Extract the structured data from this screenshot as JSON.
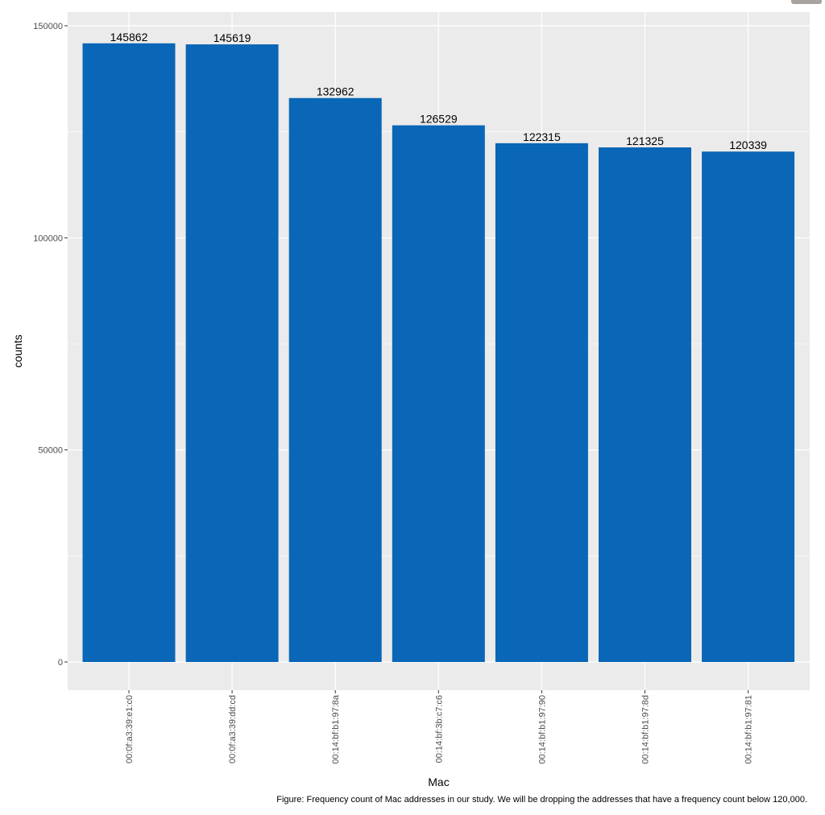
{
  "chart_data": {
    "type": "bar",
    "xlabel": "Mac",
    "ylabel": "counts",
    "categories": [
      "00:0f:a3:39:e1:c0",
      "00:0f:a3:39:dd:cd",
      "00:14:bf:b1:97:8a",
      "00:14:bf:3b:c7:c6",
      "00:14:bf:b1:97:90",
      "00:14:bf:b1:97:8d",
      "00:14:bf:b1:97:81"
    ],
    "values": [
      145862,
      145619,
      132962,
      126529,
      122315,
      121325,
      120339
    ],
    "ylim": [
      -6000,
      150000
    ],
    "yticks": [
      0,
      50000,
      100000,
      150000
    ],
    "ytick_labels": [
      "0",
      "50000",
      "100000",
      "150000"
    ],
    "grid": true,
    "bar_color": "#0a66b7",
    "panel_background": "#ebebeb",
    "gridline_color": "#ffffff"
  },
  "caption": "Figure: Frequency count of Mac addresses in our study. We will be dropping the addresses that have a frequency count below 120,000."
}
